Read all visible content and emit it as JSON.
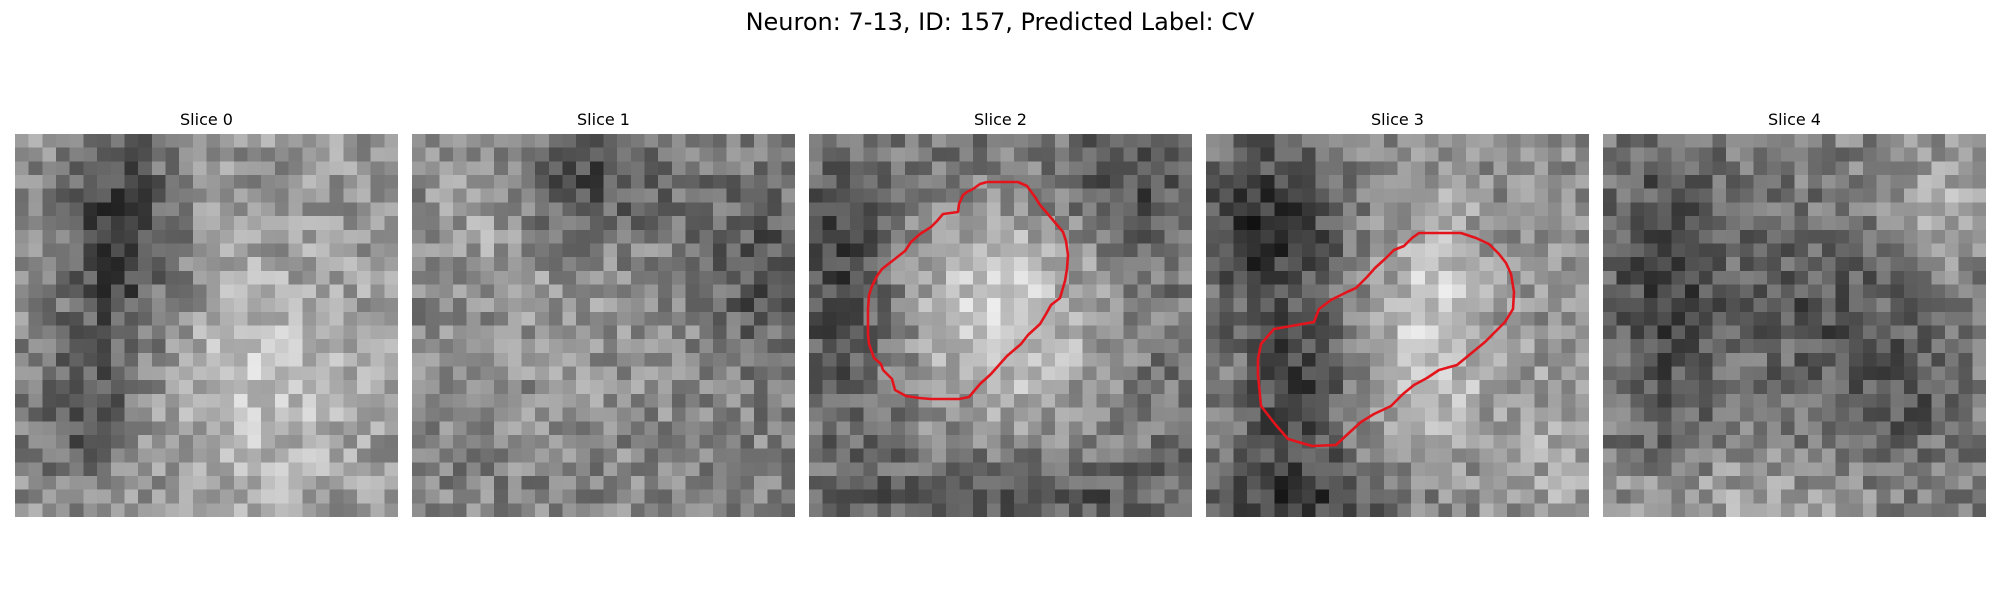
{
  "figure": {
    "title": "Neuron: 7-13, ID: 157, Predicted Label: CV"
  },
  "colors": {
    "contour": "#e4141c",
    "colormap": "gray"
  },
  "panels": [
    {
      "title": "Slice 0",
      "has_contour": false
    },
    {
      "title": "Slice 1",
      "has_contour": false
    },
    {
      "title": "Slice 2",
      "has_contour": true
    },
    {
      "title": "Slice 3",
      "has_contour": true
    },
    {
      "title": "Slice 4",
      "has_contour": false
    }
  ]
}
